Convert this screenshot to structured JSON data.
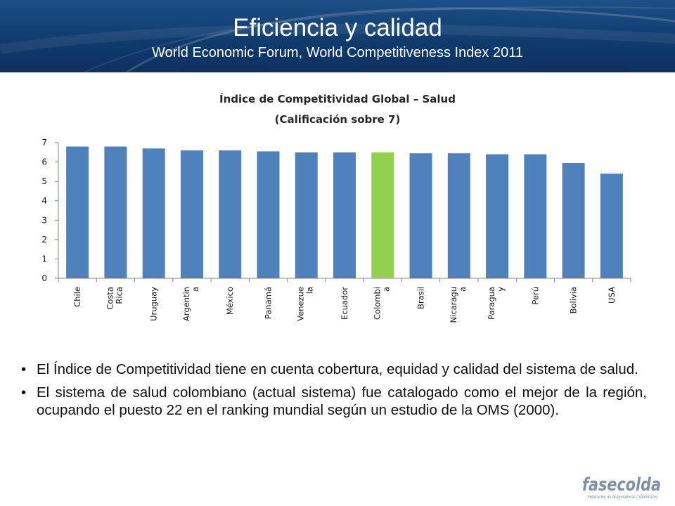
{
  "header": {
    "title": "Eficiencia y calidad",
    "subtitle": "World Economic Forum, World Competitiveness Index 2011"
  },
  "chart_data": {
    "type": "bar",
    "title_lines": [
      "Índice de Competitividad Global – Salud",
      "(Calificación sobre 7)"
    ],
    "categories": [
      "Chile",
      "Costa Rica",
      "Uruguay",
      "Argentina",
      "México",
      "Panamá",
      "Venezuela",
      "Ecuador",
      "Colombia",
      "Brasil",
      "Nicaragua",
      "Paraguay",
      "Perú",
      "Bolivia",
      "USA"
    ],
    "category_label_lines": [
      [
        "Chile"
      ],
      [
        "Costa",
        "Rica"
      ],
      [
        "Uruguay"
      ],
      [
        "Argentin",
        "a"
      ],
      [
        "México"
      ],
      [
        "Panamá"
      ],
      [
        "Venezue",
        "la"
      ],
      [
        "Ecuador"
      ],
      [
        "Colombi",
        "a"
      ],
      [
        "Brasil"
      ],
      [
        "Nicaragu",
        "a"
      ],
      [
        "Paragua",
        "y"
      ],
      [
        "Perú"
      ],
      [
        "Bolivia"
      ],
      [
        "USA"
      ]
    ],
    "values": [
      6.8,
      6.8,
      6.7,
      6.6,
      6.6,
      6.55,
      6.5,
      6.5,
      6.5,
      6.45,
      6.45,
      6.4,
      6.4,
      5.95,
      5.4
    ],
    "ylim": [
      0,
      7
    ],
    "yticks": [
      "0",
      "1",
      "2",
      "3",
      "4",
      "5",
      "6",
      "7"
    ],
    "highlight": "Colombia",
    "colors": {
      "bar": "#4f81bd",
      "highlight": "#92d050",
      "axis": "#868686"
    },
    "grid": false,
    "legend": "none"
  },
  "bullets": [
    "El Índice de Competitividad tiene en cuenta cobertura, equidad y calidad del sistema de salud.",
    "El sistema de salud colombiano (actual sistema) fue catalogado como el mejor de la región, ocupando el puesto 22 en el ranking mundial según un estudio de la OMS (2000)."
  ],
  "logo": {
    "name": "fasecolda",
    "tagline": "Federación de Aseguradores Colombianos",
    "color": "#7f8fa6"
  }
}
